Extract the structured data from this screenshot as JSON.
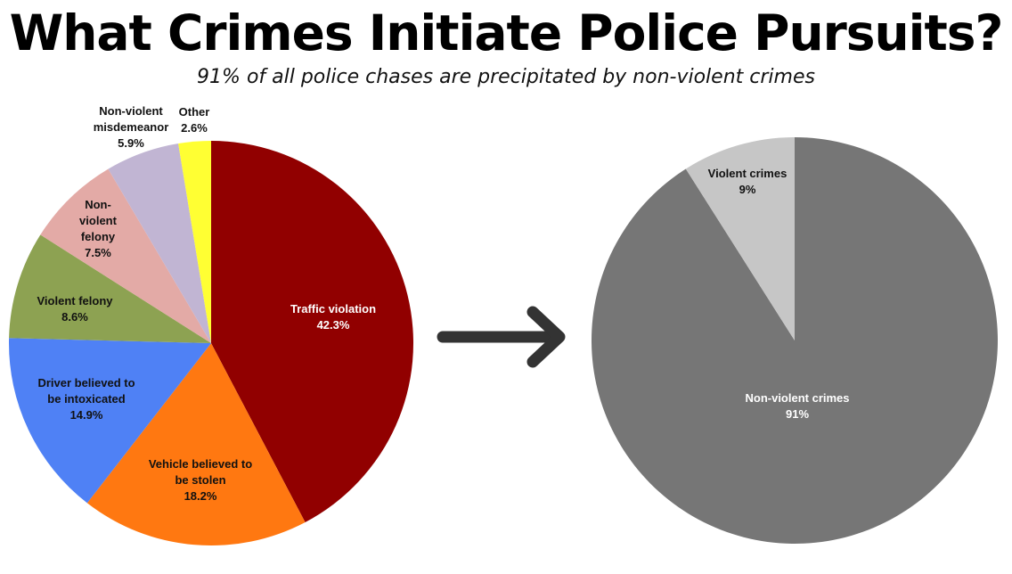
{
  "title": "What Crimes Initiate Police Pursuits?",
  "subtitle": "91% of all police chases are precipitated by non-violent crimes",
  "chart_data": [
    {
      "type": "pie",
      "legend": "none",
      "start": "12 o'clock, clockwise",
      "slices": [
        {
          "label": [
            "Traffic violation"
          ],
          "value": 42.3,
          "value_label": "42.3%",
          "color": "#910000",
          "label_color": "#ffffff"
        },
        {
          "label": [
            "Vehicle believed to",
            "be stolen"
          ],
          "value": 18.2,
          "value_label": "18.2%",
          "color": "#ff7811",
          "label_color": "#111111"
        },
        {
          "label": [
            "Driver  believed to",
            "be intoxicated"
          ],
          "value": 14.9,
          "value_label": "14.9%",
          "color": "#4f81f5",
          "label_color": "#111111"
        },
        {
          "label": [
            "Violent felony"
          ],
          "value": 8.6,
          "value_label": "8.6%",
          "color": "#8da252",
          "label_color": "#111111"
        },
        {
          "label": [
            "Non-",
            "violent",
            "felony"
          ],
          "value": 7.5,
          "value_label": "7.5%",
          "color": "#e3aaa6",
          "label_color": "#111111"
        },
        {
          "label": [
            "Non-violent",
            "misdemeanor"
          ],
          "value": 5.9,
          "value_label": "5.9%",
          "color": "#c1b5d3",
          "label_color": "#111111"
        },
        {
          "label": [
            "Other"
          ],
          "value": 2.6,
          "value_label": "2.6%",
          "color": "#ffff33",
          "label_color": "#111111"
        }
      ]
    },
    {
      "type": "pie",
      "legend": "none",
      "start": "12 o'clock, clockwise",
      "slices": [
        {
          "label": [
            "Non-violent crimes"
          ],
          "value": 91,
          "value_label": "91%",
          "color": "#767676",
          "label_color": "#ffffff"
        },
        {
          "label": [
            "Violent crimes"
          ],
          "value": 9,
          "value_label": "9%",
          "color": "#c6c6c6",
          "label_color": "#111111"
        }
      ]
    }
  ],
  "arrow": {
    "icon": "right-arrow-icon",
    "color": "#333333"
  }
}
